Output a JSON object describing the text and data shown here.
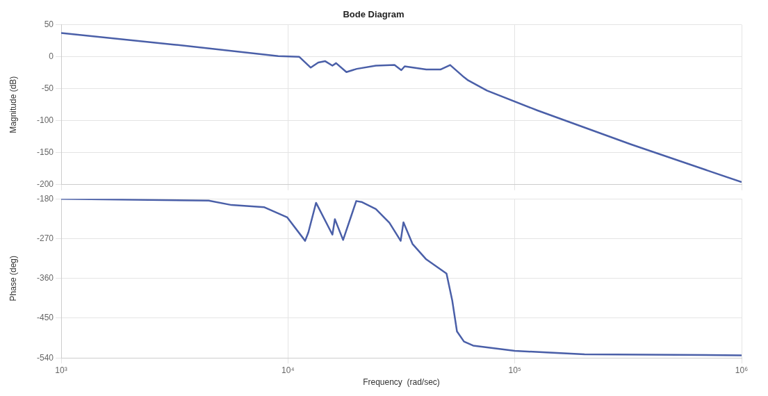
{
  "chart_data": [
    {
      "type": "line",
      "title": "Bode Diagram",
      "ylabel": "Magnitude (dB)",
      "log": "x",
      "grid": true,
      "tick_labels": "y",
      "xlim": [
        1000,
        1000000
      ],
      "xticks": [
        {
          "value": 1000,
          "label": null
        },
        {
          "value": 10000,
          "label": null
        },
        {
          "value": 100000,
          "label": null
        },
        {
          "value": 1000000,
          "label": null
        }
      ],
      "ylim": [
        -200,
        50
      ],
      "yticks": [
        -200,
        -150,
        -100,
        -50,
        0,
        50
      ],
      "series": [
        {
          "color": "#4a5fa8",
          "x": [
            1000,
            3140,
            9060,
            11200,
            12600,
            13600,
            14600,
            15700,
            16300,
            18100,
            20100,
            24400,
            29500,
            31600,
            32700,
            40700,
            47000,
            51900,
            59700,
            62300,
            75400,
            126000,
            325000,
            1000000
          ],
          "values": [
            37,
            19,
            1,
            0,
            -17,
            -9,
            -7,
            -14,
            -10,
            -24,
            -19,
            -14,
            -13,
            -21,
            -15,
            -20,
            -20,
            -13,
            -32,
            -37,
            -53,
            -84,
            -137,
            -196
          ]
        }
      ]
    },
    {
      "type": "line",
      "xlabel": "Frequency  (rad/sec)",
      "ylabel": "Phase (deg)",
      "log": "x",
      "grid": true,
      "xlim": [
        1000,
        1000000
      ],
      "xticks": [
        {
          "value": 1000,
          "label": "10³"
        },
        {
          "value": 10000,
          "label": "10⁴"
        },
        {
          "value": 100000,
          "label": "10⁵"
        },
        {
          "value": 1000000,
          "label": "10⁶"
        }
      ],
      "ylim": [
        -540,
        -180
      ],
      "yticks": [
        -540,
        -450,
        -360,
        -270,
        -180
      ],
      "series": [
        {
          "color": "#4a5fa8",
          "x": [
            1000,
            4470,
            5640,
            7870,
            9930,
            11900,
            12300,
            13300,
            15700,
            16100,
            17500,
            20000,
            21100,
            24400,
            28000,
            31400,
            32300,
            35400,
            40700,
            50000,
            53000,
            55600,
            59700,
            65500,
            100000,
            203000,
            1000000
          ],
          "values": [
            -180,
            -184,
            -194,
            -199,
            -222,
            -275,
            -256,
            -189,
            -261,
            -226,
            -273,
            -185,
            -187,
            -203,
            -234,
            -275,
            -233,
            -282,
            -317,
            -349,
            -410,
            -480,
            -503,
            -512,
            -524,
            -532,
            -534
          ]
        }
      ]
    }
  ]
}
